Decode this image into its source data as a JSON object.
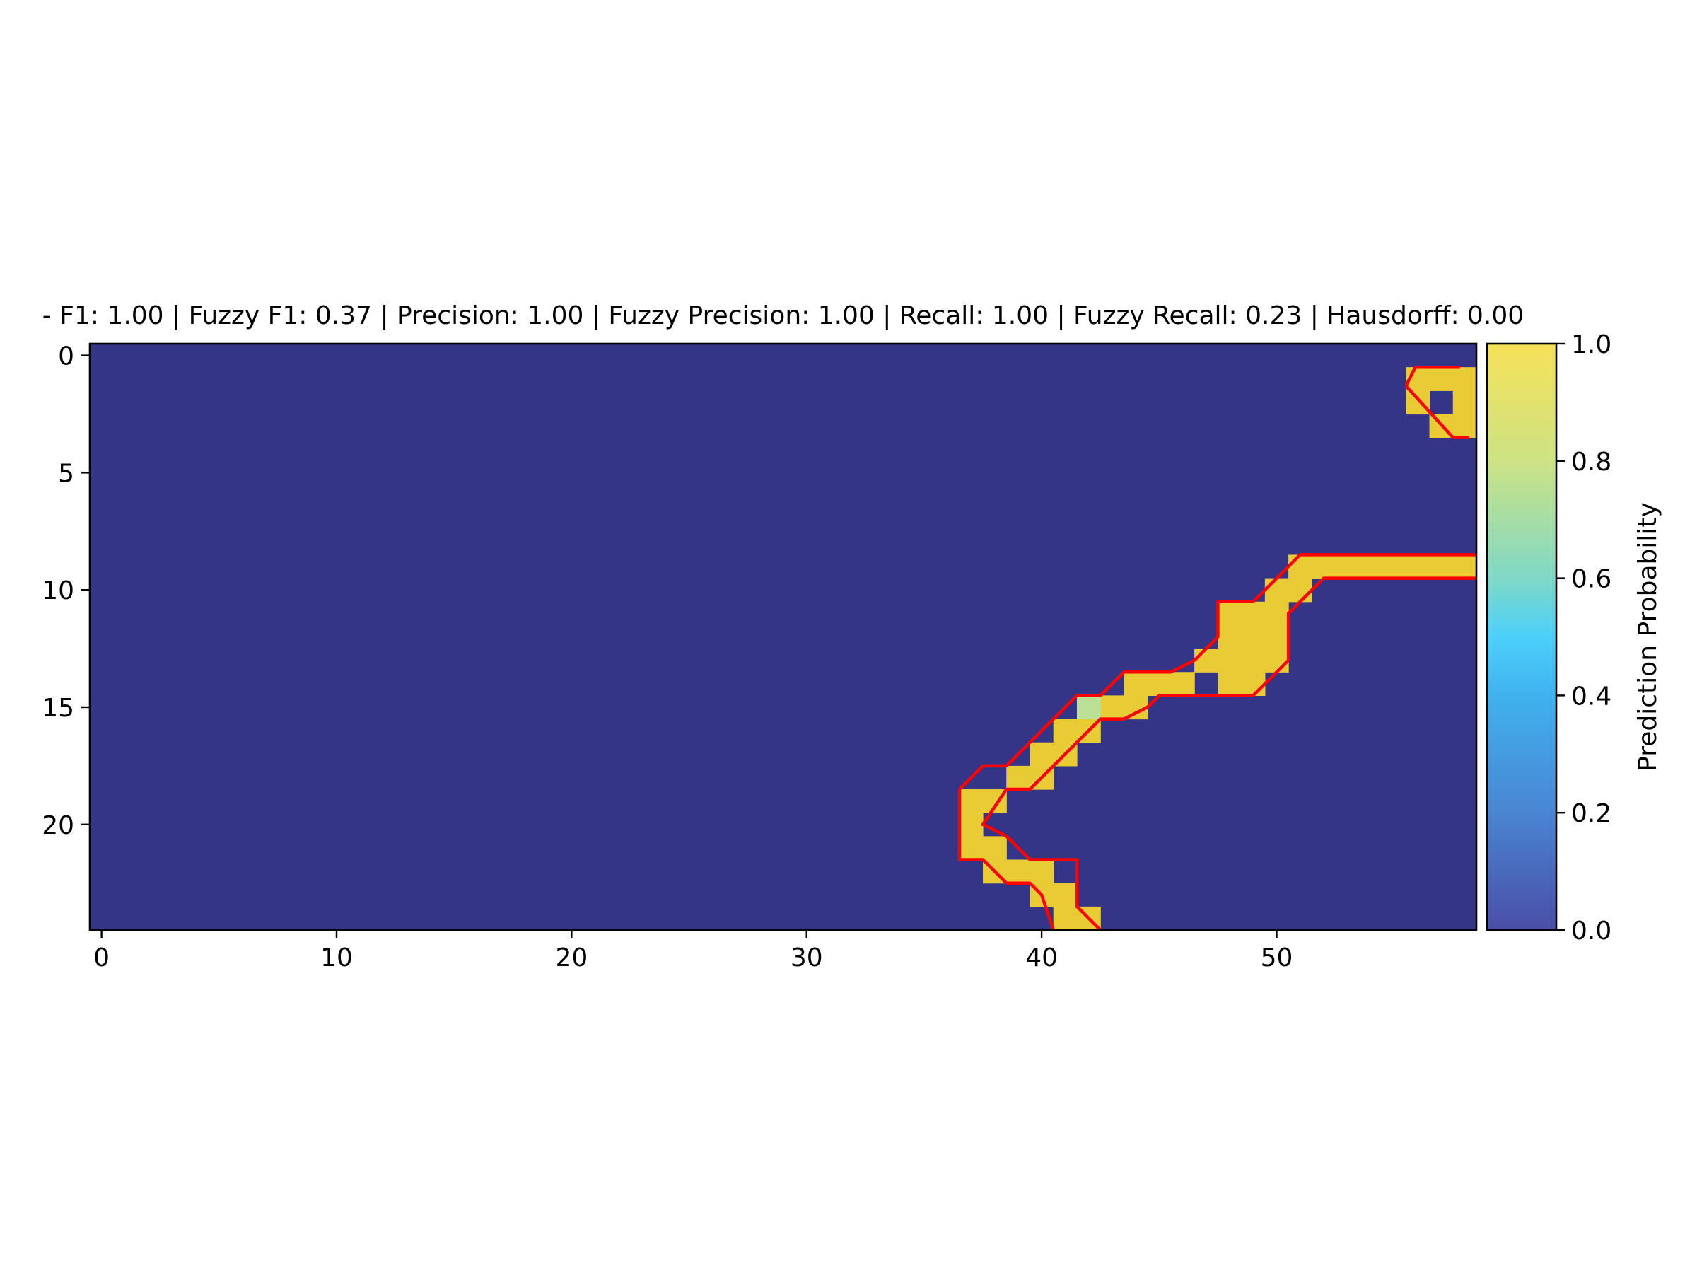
{
  "chart_data": {
    "type": "heatmap",
    "title": "- F1: 1.00 | Fuzzy F1: 0.37 | Precision: 1.00 | Fuzzy Precision: 1.00 | Recall: 1.00 | Fuzzy Recall: 0.23 | Hausdorff: 0.00",
    "xlabel": "",
    "ylabel": "",
    "xlim": [
      -0.5,
      58.5
    ],
    "ylim": [
      24.5,
      -0.5
    ],
    "grid": false,
    "n_cols": 59,
    "n_rows": 25,
    "x_ticks": [
      0,
      10,
      20,
      30,
      40,
      50
    ],
    "y_ticks": [
      0,
      5,
      10,
      15,
      20
    ],
    "background_value": 0.0,
    "high_cells": [
      [
        1,
        56
      ],
      [
        1,
        57
      ],
      [
        1,
        58
      ],
      [
        2,
        56
      ],
      [
        2,
        58
      ],
      [
        3,
        57
      ],
      [
        3,
        58
      ],
      [
        9,
        51
      ],
      [
        9,
        52
      ],
      [
        9,
        53
      ],
      [
        9,
        54
      ],
      [
        9,
        55
      ],
      [
        9,
        56
      ],
      [
        9,
        57
      ],
      [
        9,
        58
      ],
      [
        10,
        50
      ],
      [
        10,
        51
      ],
      [
        11,
        48
      ],
      [
        11,
        49
      ],
      [
        11,
        50
      ],
      [
        12,
        48
      ],
      [
        12,
        49
      ],
      [
        12,
        50
      ],
      [
        13,
        47
      ],
      [
        13,
        48
      ],
      [
        13,
        49
      ],
      [
        13,
        50
      ],
      [
        14,
        44
      ],
      [
        14,
        45
      ],
      [
        14,
        46
      ],
      [
        14,
        48
      ],
      [
        14,
        49
      ],
      [
        15,
        43
      ],
      [
        15,
        44
      ],
      [
        16,
        41
      ],
      [
        16,
        42
      ],
      [
        17,
        40
      ],
      [
        17,
        41
      ],
      [
        18,
        39
      ],
      [
        18,
        40
      ],
      [
        19,
        37
      ],
      [
        19,
        38
      ],
      [
        20,
        37
      ],
      [
        21,
        37
      ],
      [
        21,
        38
      ],
      [
        22,
        38
      ],
      [
        22,
        39
      ],
      [
        22,
        40
      ],
      [
        23,
        40
      ],
      [
        23,
        41
      ],
      [
        24,
        41
      ],
      [
        24,
        42
      ]
    ],
    "mid_cells": [
      [
        15,
        42,
        0.75
      ]
    ],
    "contours": [
      [
        [
          55.5,
          1.3
        ],
        [
          55.9,
          0.5
        ],
        [
          57.8,
          0.5
        ]
      ],
      [
        [
          58.2,
          3.5
        ],
        [
          57.5,
          3.5
        ],
        [
          55.5,
          1.3
        ]
      ],
      [
        [
          58.5,
          8.5
        ],
        [
          51.0,
          8.5
        ],
        [
          50.5,
          9.0
        ],
        [
          50.0,
          9.5
        ],
        [
          49.5,
          10.0
        ],
        [
          49.0,
          10.5
        ],
        [
          47.5,
          10.5
        ],
        [
          47.5,
          12.0
        ],
        [
          46.5,
          13.0
        ],
        [
          45.5,
          13.5
        ],
        [
          43.5,
          13.5
        ],
        [
          42.5,
          14.5
        ],
        [
          41.5,
          14.5
        ],
        [
          40.5,
          15.5
        ],
        [
          39.5,
          16.5
        ],
        [
          38.5,
          17.5
        ],
        [
          37.5,
          17.5
        ],
        [
          36.5,
          18.5
        ],
        [
          36.5,
          21.5
        ],
        [
          37.5,
          21.5
        ],
        [
          38.5,
          22.5
        ],
        [
          39.5,
          22.5
        ],
        [
          40.0,
          23.0
        ],
        [
          40.5,
          24.5
        ]
      ],
      [
        [
          58.5,
          9.5
        ],
        [
          52.0,
          9.5
        ],
        [
          51.5,
          10.0
        ],
        [
          50.5,
          11.0
        ],
        [
          50.5,
          13.0
        ],
        [
          49.5,
          14.0
        ],
        [
          49.0,
          14.5
        ],
        [
          45.0,
          14.5
        ],
        [
          44.5,
          15.0
        ],
        [
          43.5,
          15.5
        ],
        [
          42.5,
          15.5
        ],
        [
          41.5,
          16.5
        ],
        [
          40.5,
          17.5
        ],
        [
          39.5,
          18.5
        ],
        [
          38.5,
          18.5
        ],
        [
          37.5,
          20.0
        ],
        [
          38.5,
          20.5
        ],
        [
          39.5,
          21.5
        ],
        [
          41.5,
          21.5
        ],
        [
          41.5,
          23.5
        ],
        [
          42.5,
          24.5
        ]
      ]
    ],
    "colorbar": {
      "label": "Prediction Probability",
      "range": [
        0.0,
        1.0
      ],
      "ticks": [
        "0.0",
        "0.2",
        "0.4",
        "0.6",
        "0.8",
        "1.0"
      ]
    },
    "colors": {
      "background_cell": "#353588",
      "high_cell": "#e8cb35",
      "contour": "#ff0000",
      "colormap": [
        [
          0.0,
          "#4a4ea6"
        ],
        [
          0.2,
          "#4a85d2"
        ],
        [
          0.4,
          "#40b2ee"
        ],
        [
          0.5,
          "#4cd0fa"
        ],
        [
          0.6,
          "#7fd8c6"
        ],
        [
          0.8,
          "#cde384"
        ],
        [
          1.0,
          "#f6e157"
        ]
      ]
    }
  }
}
